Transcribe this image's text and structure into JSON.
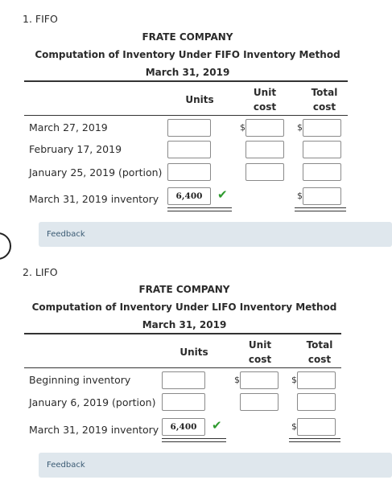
{
  "section1": {
    "number": "1. FIFO",
    "company": "FRATE COMPANY",
    "heading": "Computation of Inventory Under FIFO Inventory Method",
    "date": "March 31, 2019",
    "col_units": "Units",
    "col_unit_cost": [
      "Unit",
      "cost"
    ],
    "col_total_cost": [
      "Total",
      "cost"
    ],
    "rows": [
      {
        "label": "March 27, 2019"
      },
      {
        "label": "February 17, 2019"
      },
      {
        "label": "January 25, 2019 (portion)"
      },
      {
        "label": "March 31, 2019 inventory",
        "units_value": "6,400"
      }
    ],
    "feedback_label": "Feedback"
  },
  "section2": {
    "number": "2. LIFO",
    "company": "FRATE COMPANY",
    "heading": "Computation of Inventory Under LIFO Inventory Method",
    "date": "March 31, 2019",
    "col_units": "Units",
    "col_unit_cost": [
      "Unit",
      "cost"
    ],
    "col_total_cost": [
      "Total",
      "cost"
    ],
    "rows": [
      {
        "label": "Beginning inventory"
      },
      {
        "label": "January 6, 2019 (portion)"
      },
      {
        "label": "March 31, 2019 inventory",
        "units_value": "6,400"
      }
    ],
    "feedback_label": "Feedback"
  },
  "currency_symbol": "$",
  "check_icon": "checkmark-icon",
  "colors": {
    "check": "#2e9a2e",
    "feedback_bg": "#dfe7ed",
    "feedback_text": "#3b5b74"
  }
}
